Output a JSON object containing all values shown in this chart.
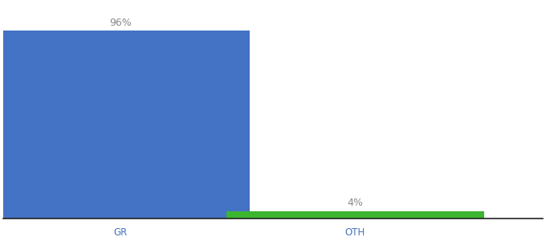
{
  "categories": [
    "GR",
    "OTH"
  ],
  "values": [
    96,
    4
  ],
  "bar_colors": [
    "#4472c4",
    "#3cb531"
  ],
  "bar_labels": [
    "96%",
    "4%"
  ],
  "ylim": [
    0,
    110
  ],
  "background_color": "#ffffff",
  "label_fontsize": 9,
  "tick_fontsize": 8.5,
  "bar_width": 0.55,
  "x_positions": [
    0.25,
    0.75
  ],
  "xlim": [
    0.0,
    1.15
  ],
  "label_color": "#888888",
  "tick_color": "#4472c4"
}
